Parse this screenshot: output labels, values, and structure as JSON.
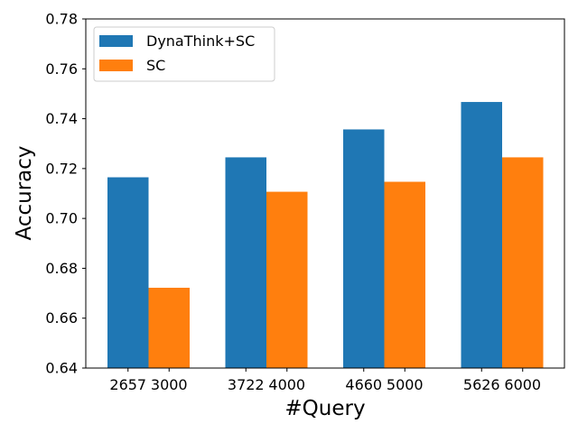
{
  "chart_data": {
    "type": "bar",
    "title": "",
    "xlabel": "#Query",
    "ylabel": "Accuracy",
    "ylim": [
      0.64,
      0.78
    ],
    "yticks": [
      "0.64",
      "0.66",
      "0.68",
      "0.70",
      "0.72",
      "0.74",
      "0.76",
      "0.78"
    ],
    "grid": false,
    "legend_position": "top-left",
    "series": [
      {
        "name": "DynaThink+SC",
        "color": "#1f77b4",
        "x_labels": [
          "2657",
          "3722",
          "4660",
          "5626"
        ],
        "values": [
          0.7165,
          0.7245,
          0.7357,
          0.7467
        ]
      },
      {
        "name": "SC",
        "color": "#ff7f0e",
        "x_labels": [
          "3000",
          "4000",
          "5000",
          "6000"
        ],
        "values": [
          0.6722,
          0.7107,
          0.7147,
          0.7245
        ]
      }
    ]
  }
}
